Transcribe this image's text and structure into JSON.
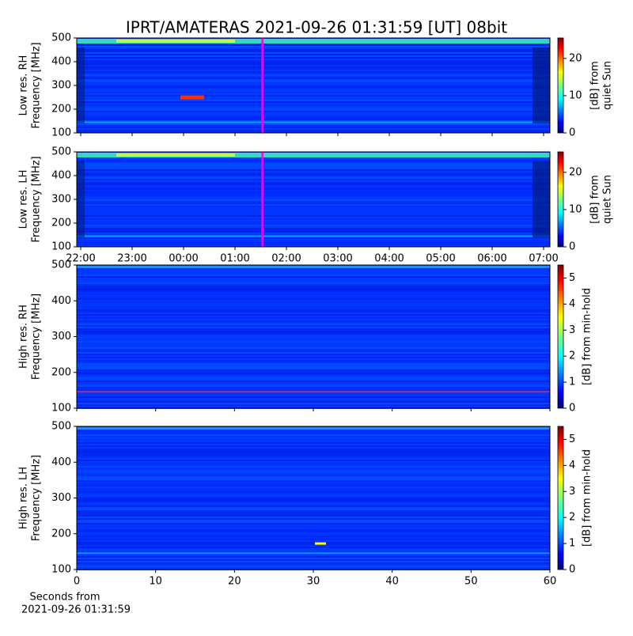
{
  "title": "IPRT/AMATERAS 2021-09-26 01:31:59 [UT]   08bit",
  "chart_data": [
    {
      "type": "spectrogram",
      "ylabel": [
        "Low res. RH",
        "Frequency [MHz]"
      ],
      "xlim": [
        21.923,
        31.123
      ],
      "xticks": [
        22,
        23,
        24,
        25,
        26,
        27,
        28,
        29,
        30,
        31
      ],
      "ylim": [
        100,
        500
      ],
      "yticks": [
        100,
        200,
        300,
        400,
        500
      ],
      "marker_x": 25.533,
      "marker_color": "#ff00ff",
      "colorbar_label": [
        "[dB] from",
        "quiet Sun"
      ],
      "clim": [
        0,
        25.5
      ],
      "cticks": [
        0,
        10,
        20
      ]
    },
    {
      "type": "spectrogram",
      "ylabel": [
        "Low res. LH",
        "Frequency [MHz]"
      ],
      "xlim": [
        21.923,
        31.123
      ],
      "xticks": [
        {
          "value": 22,
          "label": "22:00"
        },
        {
          "value": 23,
          "label": "23:00"
        },
        {
          "value": 24,
          "label": "00:00"
        },
        {
          "value": 25,
          "label": "01:00"
        },
        {
          "value": 26,
          "label": "02:00"
        },
        {
          "value": 27,
          "label": "03:00"
        },
        {
          "value": 28,
          "label": "04:00"
        },
        {
          "value": 29,
          "label": "05:00"
        },
        {
          "value": 30,
          "label": "06:00"
        },
        {
          "value": 31,
          "label": "07:00"
        }
      ],
      "ylim": [
        100,
        500
      ],
      "yticks": [
        100,
        200,
        300,
        400,
        500
      ],
      "marker_x": 25.533,
      "marker_color": "#ff00ff",
      "colorbar_label": [
        "[dB] from",
        "quiet Sun"
      ],
      "clim": [
        0,
        25.5
      ],
      "cticks": [
        0,
        10,
        20
      ]
    },
    {
      "type": "spectrogram",
      "ylabel": [
        "High res. RH",
        "Frequency [MHz]"
      ],
      "xlim": [
        0,
        60
      ],
      "xticks": [
        0,
        10,
        20,
        30,
        40,
        50,
        60
      ],
      "ylim": [
        100,
        500
      ],
      "yticks": [
        100,
        200,
        300,
        400,
        500
      ],
      "colorbar_label": [
        "[dB] from min-hold"
      ],
      "clim": [
        0,
        5.5
      ],
      "cticks": [
        0,
        1,
        2,
        3,
        4,
        5
      ]
    },
    {
      "type": "spectrogram",
      "ylabel": [
        "High res. LH",
        "Frequency [MHz]"
      ],
      "xlim": [
        0,
        60
      ],
      "xticks": [
        0,
        10,
        20,
        30,
        40,
        50,
        60
      ],
      "xticks_labeled": true,
      "xlabel": [
        "Seconds from",
        "2021-09-26 01:31:59"
      ],
      "ylim": [
        100,
        500
      ],
      "yticks": [
        100,
        200,
        300,
        400,
        500
      ],
      "colorbar_label": [
        "[dB] from min-hold"
      ],
      "clim": [
        0,
        5.5
      ],
      "cticks": [
        0,
        1,
        2,
        3,
        4,
        5
      ]
    }
  ]
}
